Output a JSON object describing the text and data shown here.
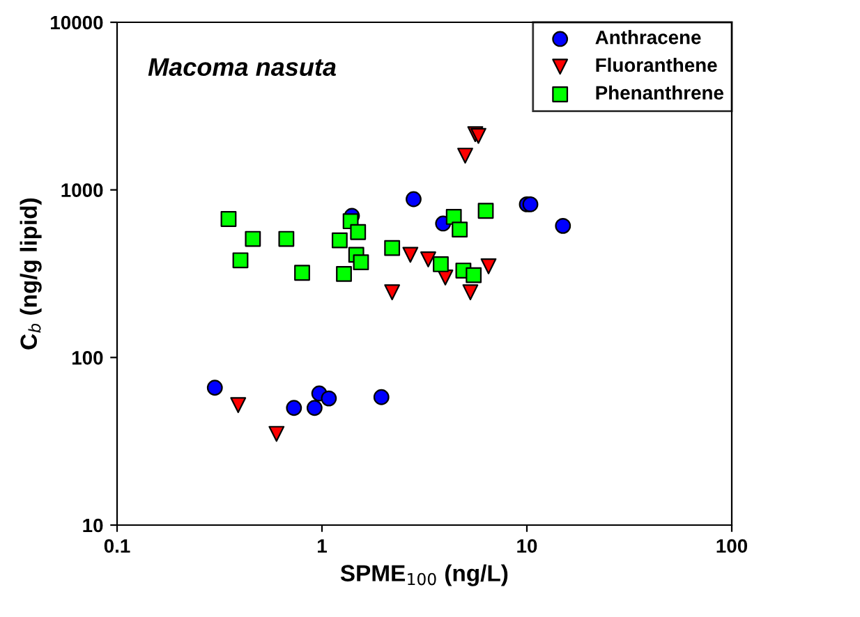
{
  "chart_data": {
    "type": "scatter",
    "xlabel": "SPME$_{100}$ (ng/L)",
    "ylabel": "C$_{b}$ (ng/g lipid)",
    "log": "xy",
    "xlim": [
      0.1,
      100
    ],
    "xticks": [
      0.1,
      1,
      10,
      100
    ],
    "ylim": [
      10,
      10000
    ],
    "yticks": [
      10,
      100,
      1000,
      10000
    ],
    "grid": false,
    "legend": "top right",
    "annotations": [
      "Macoma nasuta"
    ],
    "series": [
      {
        "name": "Anthracene",
        "color": "#0000ff",
        "marker": "circle",
        "x": [
          0.3,
          0.73,
          0.92,
          0.97,
          1.08,
          1.95,
          1.4,
          2.8,
          3.9,
          10,
          10.4,
          15
        ],
        "values": [
          66,
          50,
          50,
          61,
          57,
          58,
          700,
          880,
          630,
          820,
          820,
          610
        ]
      },
      {
        "name": "Fluoranthene",
        "color": "#ff0000",
        "marker": "triangle",
        "x": [
          0.39,
          0.6,
          2.2,
          2.7,
          3.3,
          4,
          5.3,
          6.5,
          5,
          5.6,
          5.8
        ],
        "values": [
          52,
          35,
          245,
          410,
          385,
          300,
          245,
          350,
          1600,
          2150,
          2100
        ]
      },
      {
        "name": "Phenanthrene",
        "color": "#00ff00",
        "marker": "square",
        "x": [
          0.35,
          0.4,
          0.46,
          0.67,
          0.8,
          1.22,
          1.28,
          1.38,
          1.5,
          1.47,
          1.55,
          2.2,
          3.8,
          4.4,
          4.7,
          4.9,
          5.5,
          6.3
        ],
        "values": [
          670,
          380,
          510,
          510,
          320,
          500,
          315,
          650,
          560,
          410,
          370,
          450,
          360,
          690,
          580,
          330,
          310,
          750
        ]
      }
    ]
  }
}
